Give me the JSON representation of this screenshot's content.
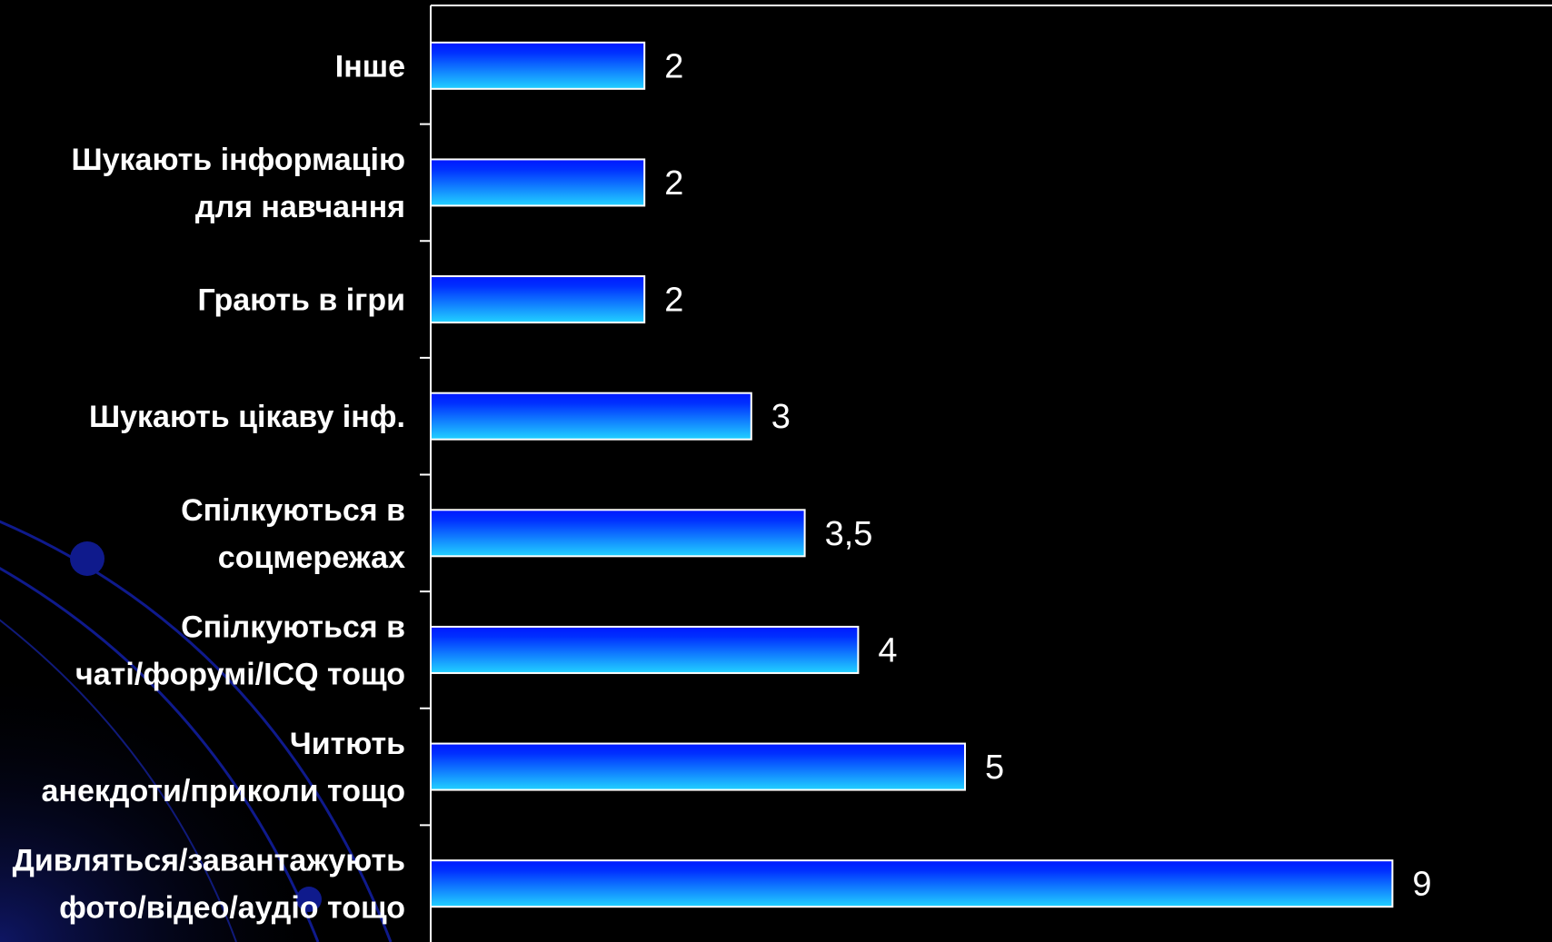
{
  "chart_data": {
    "type": "bar",
    "orientation": "horizontal",
    "categories": [
      [
        "Інше"
      ],
      [
        "Шукають інформацію",
        "для навчання"
      ],
      [
        "Грають в ігри"
      ],
      [
        "Шукають цікаву інф."
      ],
      [
        "Спілкуються в",
        "соцмережах"
      ],
      [
        "Спілкуються в",
        "чаті/форумі/ICQ тощо"
      ],
      [
        "Читють",
        "анекдоти/приколи тощо"
      ],
      [
        "Дивляться/завантажують",
        "фото/відео/аудіо тощо"
      ]
    ],
    "values": [
      2,
      2,
      2,
      3,
      3.5,
      4,
      5,
      9
    ],
    "value_labels": [
      "2",
      "2",
      "2",
      "3",
      "3,5",
      "4",
      "5",
      "9"
    ],
    "title": "",
    "xlabel": "",
    "ylabel": "",
    "xlim": [
      0,
      10
    ],
    "grid": false,
    "legend": "none",
    "colors": {
      "bar_dark": "#0018ff",
      "bar_light": "#22d2ff",
      "bar_border": "#ffffff",
      "text": "#ffffff",
      "background": "#000000",
      "swirl": "#0f1a8c"
    }
  }
}
